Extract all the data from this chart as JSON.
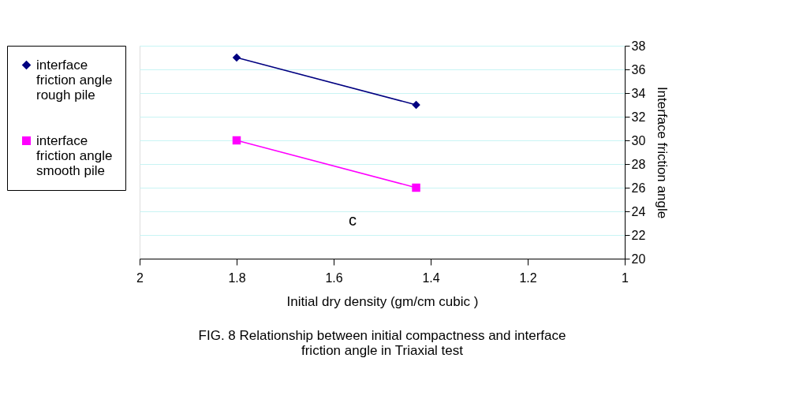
{
  "chart_data": {
    "type": "line",
    "title": "FIG. 8 Relationship between initial compactness and interface\nfriction angle in Triaxial test",
    "xlabel": "Initial dry density (gm/cm cubic )",
    "ylabel": "Interface friction angle",
    "x": [
      1.8,
      1.43
    ],
    "series": [
      {
        "name": "interface\nfriction angle\nrough pile",
        "color": "#000080",
        "marker": "diamond",
        "values": [
          37,
          33
        ]
      },
      {
        "name": "interface\nfriction angle\nsmooth pile",
        "color": "#ff00ff",
        "marker": "square",
        "values": [
          30,
          26
        ]
      }
    ],
    "xlim": [
      2,
      1
    ],
    "xticks": [
      2,
      1.8,
      1.6,
      1.4,
      1.2,
      1
    ],
    "ylim": [
      20,
      38
    ],
    "yticks": [
      20,
      22,
      24,
      26,
      28,
      30,
      32,
      34,
      36,
      38
    ],
    "grid": "y",
    "legend": "left",
    "line_style": "solid",
    "annotations": [
      "c"
    ]
  }
}
